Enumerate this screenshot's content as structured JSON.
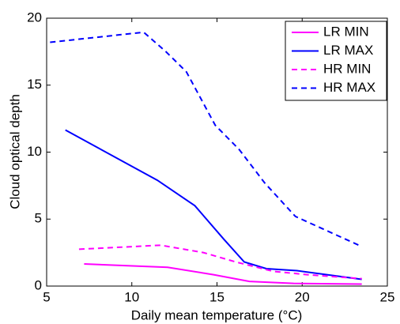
{
  "chart_data": {
    "type": "line",
    "xlabel": "Daily mean temperature (°C)",
    "ylabel": "Cloud optical depth",
    "xlim": [
      5,
      25
    ],
    "xticks": [
      5,
      10,
      15,
      20,
      25
    ],
    "ylim": [
      0,
      20
    ],
    "yticks": [
      0,
      5,
      10,
      15,
      20
    ],
    "grid": false,
    "legend": "upper right",
    "series": [
      {
        "name": "LR MIN",
        "color": "#ff00ff",
        "linestyle": "-",
        "x": [
          7.2,
          12.1,
          14.8,
          16.9,
          19.5,
          23.5
        ],
        "values": [
          1.65,
          1.4,
          0.85,
          0.35,
          0.2,
          0.15
        ]
      },
      {
        "name": "LR MAX",
        "color": "#0000ff",
        "linestyle": "-",
        "x": [
          6.1,
          11.5,
          13.7,
          15.4,
          16.6,
          17.9,
          19.7,
          23.5
        ],
        "values": [
          11.65,
          7.9,
          6.0,
          3.5,
          1.8,
          1.3,
          1.15,
          0.5
        ]
      },
      {
        "name": "HR MIN",
        "color": "#ff00ff",
        "linestyle": "--",
        "x": [
          6.9,
          11.7,
          14.2,
          16.1,
          18.3,
          20.3,
          23.5
        ],
        "values": [
          2.75,
          3.05,
          2.5,
          1.8,
          1.1,
          0.85,
          0.55
        ]
      },
      {
        "name": "HR MAX",
        "color": "#0000ff",
        "linestyle": "--",
        "x": [
          5.2,
          10.7,
          12.0,
          13.2,
          14.9,
          16.3,
          17.8,
          19.6,
          23.5
        ],
        "values": [
          18.2,
          18.95,
          17.5,
          16.0,
          12.0,
          10.2,
          7.7,
          5.2,
          2.95
        ]
      }
    ]
  }
}
